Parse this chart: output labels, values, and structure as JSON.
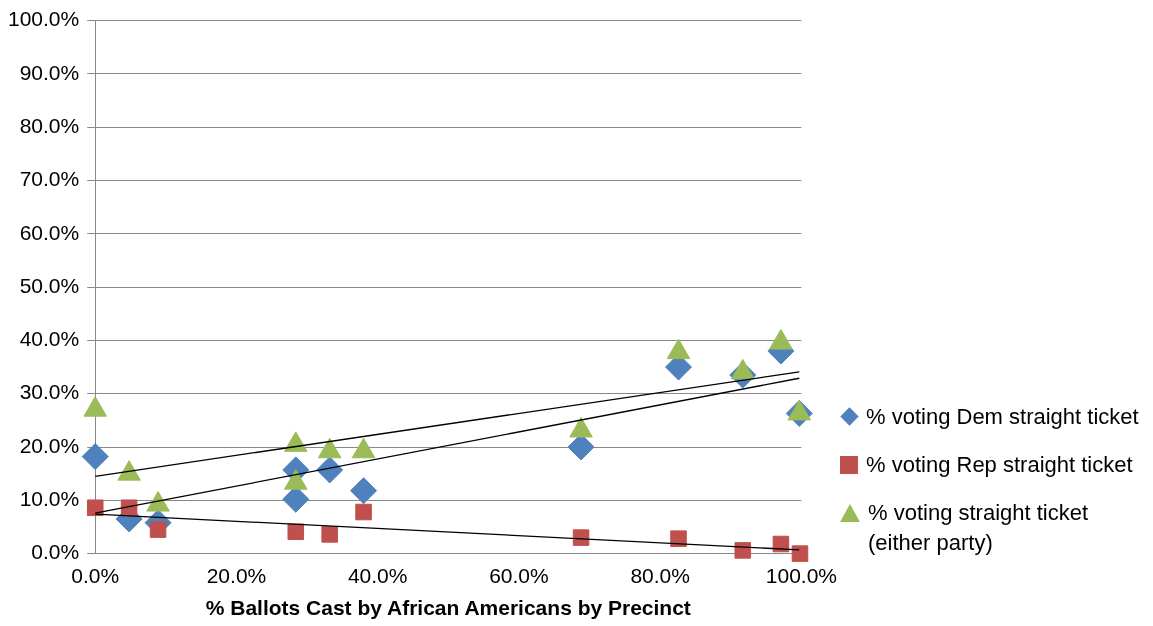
{
  "chart_data": {
    "type": "scatter",
    "xlabel": "% Ballots Cast by African Americans by Precinct",
    "xlim": [
      0,
      100
    ],
    "xticks": [
      {
        "value": 0,
        "label": "0.0%"
      },
      {
        "value": 20,
        "label": "20.0%"
      },
      {
        "value": 40,
        "label": "40.0%"
      },
      {
        "value": 60,
        "label": "60.0%"
      },
      {
        "value": 80,
        "label": "80.0%"
      },
      {
        "value": 100,
        "label": "100.0%"
      }
    ],
    "ylim": [
      0,
      100
    ],
    "yticks": [
      {
        "value": 0,
        "label": "0.0%"
      },
      {
        "value": 10,
        "label": "10.0%"
      },
      {
        "value": 20,
        "label": "20.0%"
      },
      {
        "value": 30,
        "label": "30.0%"
      },
      {
        "value": 40,
        "label": "40.0%"
      },
      {
        "value": 50,
        "label": "50.0%"
      },
      {
        "value": 60,
        "label": "60.0%"
      },
      {
        "value": 70,
        "label": "70.0%"
      },
      {
        "value": 80,
        "label": "80.0%"
      },
      {
        "value": 90,
        "label": "90.0%"
      },
      {
        "value": 100,
        "label": "100.0%"
      }
    ],
    "grid": "y",
    "legend": "right",
    "x": [
      0,
      4.8,
      8.9,
      28.4,
      28.4,
      33.2,
      38,
      68.8,
      82.6,
      91.7,
      97.1,
      99.7
    ],
    "series": [
      {
        "name": "% voting Dem straight ticket",
        "color": "#4f81bd",
        "marker": "diamond",
        "values": [
          18.2,
          6.5,
          5.8,
          15.7,
          10.2,
          15.7,
          11.8,
          20,
          35,
          33.5,
          38,
          26.3
        ]
      },
      {
        "name": "% voting Rep straight ticket",
        "color": "#c0504d",
        "marker": "square",
        "values": [
          8.6,
          8.6,
          4.5,
          4.1,
          3.6,
          7.8,
          3,
          2.8,
          0.6,
          1.8,
          0,
          null
        ],
        "x": [
          0,
          4.8,
          8.9,
          28.4,
          33.2,
          38,
          68.8,
          82.6,
          91.7,
          97.1,
          99.8,
          null
        ]
      },
      {
        "name": "% voting straight ticket (either party)",
        "color": "#9bbb59",
        "marker": "triangle",
        "values": [
          27,
          15,
          9.2,
          20.4,
          13.3,
          19.2,
          19.2,
          23.1,
          37.8,
          34,
          39.6,
          26.3
        ]
      },
      {
        "type": "line",
        "color": "#000000",
        "marker": "none",
        "x": [
          0,
          99.7
        ],
        "values": [
          7.6,
          32.9
        ]
      },
      {
        "type": "line",
        "color": "#000000",
        "marker": "none",
        "x": [
          0,
          99.7
        ],
        "values": [
          14.5,
          34.1
        ]
      },
      {
        "type": "line",
        "color": "#000000",
        "marker": "none",
        "x": [
          0,
          99.7
        ],
        "values": [
          7.4,
          0.7
        ]
      }
    ]
  }
}
